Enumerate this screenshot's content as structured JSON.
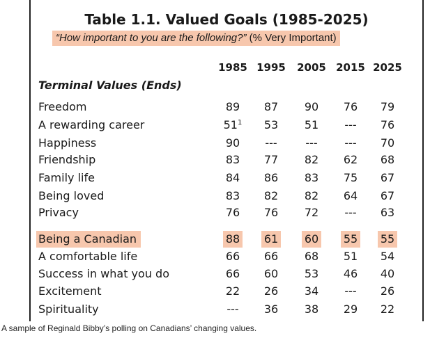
{
  "table": {
    "title": "Table 1.1.  Valued Goals (1985-2025)",
    "subtitle_question": "“How important to you are the following?”",
    "subtitle_unit": "(% Very Important)",
    "section_label": "Terminal Values (Ends)",
    "years": [
      "1985",
      "1995",
      "2005",
      "2015",
      "2025"
    ],
    "footnote_marker": "1",
    "highlight_color": "#f7c7ad",
    "rows": [
      {
        "label": "Freedom",
        "values": [
          "89",
          "87",
          "90",
          "76",
          "79"
        ]
      },
      {
        "label": "A rewarding career",
        "values": [
          "51",
          "53",
          "51",
          "---",
          "76"
        ]
      },
      {
        "label": "Happiness",
        "values": [
          "90",
          "---",
          "---",
          "---",
          "70"
        ]
      },
      {
        "label": "Friendship",
        "values": [
          "83",
          "77",
          "82",
          "62",
          "68"
        ]
      },
      {
        "label": "Family life",
        "values": [
          "84",
          "86",
          "83",
          "75",
          "67"
        ]
      },
      {
        "label": "Being loved",
        "values": [
          "83",
          "82",
          "82",
          "64",
          "67"
        ]
      },
      {
        "label": "Privacy",
        "values": [
          "76",
          "76",
          "72",
          "---",
          "63"
        ]
      },
      {
        "label": "Being a Canadian",
        "values": [
          "88",
          "61",
          "60",
          "55",
          "55"
        ]
      },
      {
        "label": "A comfortable life",
        "values": [
          "66",
          "66",
          "68",
          "51",
          "54"
        ]
      },
      {
        "label": "Success in what you do",
        "values": [
          "66",
          "60",
          "53",
          "46",
          "40"
        ]
      },
      {
        "label": "Excitement",
        "values": [
          "22",
          "26",
          "34",
          "---",
          "26"
        ]
      },
      {
        "label": "Spirituality",
        "values": [
          "---",
          "36",
          "38",
          "29",
          "22"
        ]
      }
    ]
  },
  "caption": "A sample of Reginald Bibby’s polling on Canadians’ changing values."
}
